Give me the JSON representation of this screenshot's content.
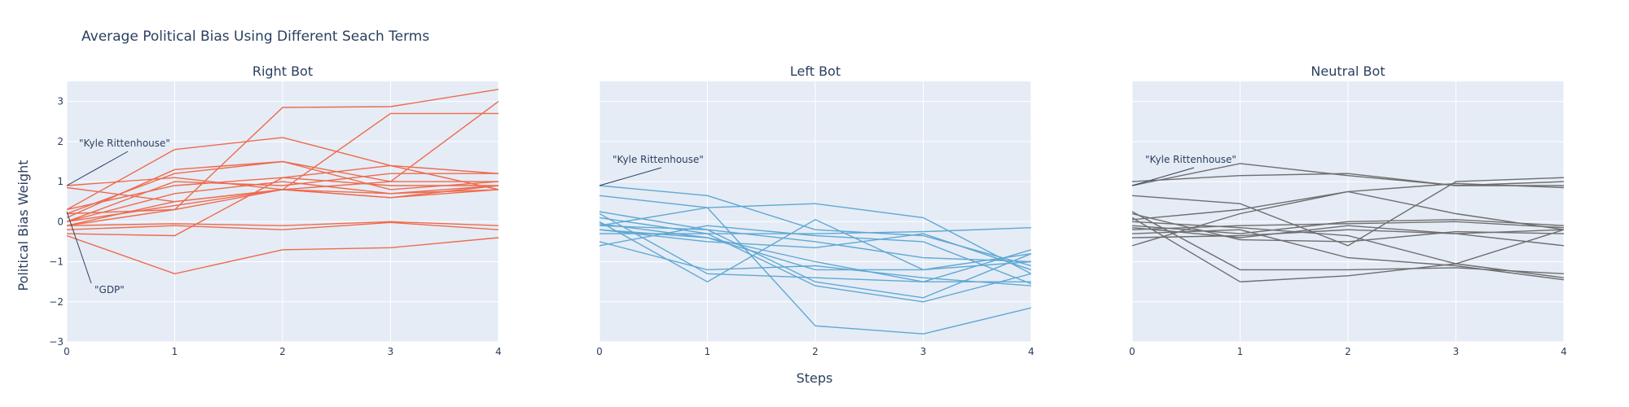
{
  "title": "Average Political Bias Using Different Seach Terms",
  "xlabel": "Steps",
  "ylabel": "Political Bias Weight",
  "colors": {
    "plot_bg": "#e5ecf6",
    "grid": "#ffffff",
    "right": "#ef6a4c",
    "left": "#5fa8d3",
    "neutral": "#6e6e6e"
  },
  "chart_data": [
    {
      "type": "line",
      "title": "Right Bot",
      "xlim": [
        0,
        4
      ],
      "ylim": [
        -3,
        3.5
      ],
      "x_ticks": [
        0,
        1,
        2,
        3,
        4
      ],
      "y_ticks": [
        -3,
        -2,
        -1,
        0,
        1,
        2,
        3
      ],
      "grid": true,
      "color": "#ef6a4c",
      "x": [
        0,
        1,
        2,
        3,
        4
      ],
      "series": [
        {
          "values": [
            0.9,
            1.1,
            0.8,
            0.7,
            0.9
          ]
        },
        {
          "values": [
            0.3,
            1.8,
            2.1,
            1.4,
            0.8
          ]
        },
        {
          "values": [
            0.2,
            1.2,
            1.5,
            0.8,
            1.0
          ]
        },
        {
          "values": [
            0.1,
            1.3,
            1.5,
            1.0,
            1.0
          ]
        },
        {
          "values": [
            -0.1,
            0.3,
            2.85,
            2.87,
            3.3
          ]
        },
        {
          "values": [
            0.2,
            0.3,
            0.8,
            2.7,
            2.7
          ]
        },
        {
          "values": [
            0.0,
            0.4,
            0.8,
            1.0,
            3.0
          ]
        },
        {
          "values": [
            -0.1,
            0.5,
            0.8,
            0.6,
            0.9
          ]
        },
        {
          "values": [
            0.0,
            0.7,
            1.0,
            0.7,
            0.8
          ]
        },
        {
          "values": [
            0.3,
            0.9,
            1.1,
            0.9,
            0.9
          ]
        },
        {
          "values": [
            0.85,
            0.5,
            0.8,
            0.6,
            0.8
          ]
        },
        {
          "values": [
            -0.1,
            -0.05,
            -0.1,
            0.0,
            -0.1
          ]
        },
        {
          "values": [
            -0.2,
            -0.1,
            -0.2,
            -0.02,
            -0.2
          ]
        },
        {
          "values": [
            -0.3,
            -0.35,
            1.1,
            1.4,
            1.2
          ]
        },
        {
          "values": [
            -0.35,
            -1.3,
            -0.7,
            -0.65,
            -0.4
          ]
        },
        {
          "values": [
            0.0,
            1.0,
            0.9,
            1.2,
            1.2
          ]
        }
      ],
      "annotations": [
        {
          "text": "\"Kyle Rittenhouse\"",
          "x": 0,
          "y": 0.9
        },
        {
          "text": "\"GDP\"",
          "x": 0,
          "y": 0.25
        }
      ]
    },
    {
      "type": "line",
      "title": "Left Bot",
      "xlim": [
        0,
        4
      ],
      "ylim": [
        -3,
        3.5
      ],
      "x_ticks": [
        0,
        1,
        2,
        3,
        4
      ],
      "grid": true,
      "color": "#5fa8d3",
      "x": [
        0,
        1,
        2,
        3,
        4
      ],
      "series": [
        {
          "values": [
            0.9,
            0.65,
            -0.2,
            -0.35,
            -1.1
          ]
        },
        {
          "values": [
            0.65,
            0.35,
            0.45,
            0.1,
            -1.3
          ]
        },
        {
          "values": [
            0.25,
            -0.2,
            -1.5,
            -1.9,
            -0.8
          ]
        },
        {
          "values": [
            0.1,
            -0.3,
            -1.6,
            -2.0,
            -1.3
          ]
        },
        {
          "values": [
            0.0,
            -1.5,
            0.05,
            -1.2,
            -1.0
          ]
        },
        {
          "values": [
            -0.1,
            0.35,
            -2.6,
            -2.8,
            -2.15
          ]
        },
        {
          "values": [
            -0.2,
            -0.4,
            -1.2,
            -1.2,
            -0.8
          ]
        },
        {
          "values": [
            -0.1,
            -0.2,
            -0.5,
            -0.9,
            -1.0
          ]
        },
        {
          "values": [
            -0.3,
            -0.3,
            -0.3,
            -0.25,
            -0.15
          ]
        },
        {
          "values": [
            -0.05,
            -0.4,
            -1.0,
            -1.5,
            -1.5
          ]
        },
        {
          "values": [
            -0.5,
            -1.2,
            -1.1,
            -1.4,
            -1.6
          ]
        },
        {
          "values": [
            0.2,
            -1.3,
            -1.4,
            -1.5,
            -0.7
          ]
        },
        {
          "values": [
            -0.2,
            -0.5,
            -0.65,
            -0.3,
            -1.2
          ]
        },
        {
          "values": [
            -0.6,
            -0.1,
            -0.35,
            -0.5,
            -1.55
          ]
        }
      ],
      "annotations": [
        {
          "text": "\"Kyle Rittenhouse\"",
          "x": 0,
          "y": 0.9
        }
      ]
    },
    {
      "type": "line",
      "title": "Neutral Bot",
      "xlim": [
        0,
        4
      ],
      "ylim": [
        -3,
        3.5
      ],
      "x_ticks": [
        0,
        1,
        2,
        3,
        4
      ],
      "grid": true,
      "color": "#6e6e6e",
      "x": [
        0,
        1,
        2,
        3,
        4
      ],
      "series": [
        {
          "values": [
            0.9,
            1.45,
            1.15,
            0.9,
            0.9
          ]
        },
        {
          "values": [
            1.0,
            1.15,
            1.2,
            0.9,
            1.0
          ]
        },
        {
          "values": [
            0.65,
            0.45,
            -0.6,
            1.0,
            1.1
          ]
        },
        {
          "values": [
            0.25,
            -1.2,
            -1.2,
            -1.15,
            -1.3
          ]
        },
        {
          "values": [
            0.05,
            0.3,
            0.75,
            0.2,
            -0.2
          ]
        },
        {
          "values": [
            0.1,
            -1.5,
            -1.35,
            -1.05,
            -0.2
          ]
        },
        {
          "values": [
            0.0,
            -0.15,
            -0.35,
            -1.05,
            -1.4
          ]
        },
        {
          "values": [
            -0.1,
            -0.3,
            0.0,
            0.05,
            -0.1
          ]
        },
        {
          "values": [
            -0.2,
            -0.1,
            -0.05,
            0.0,
            -0.15
          ]
        },
        {
          "values": [
            -0.15,
            -0.4,
            -0.1,
            -0.3,
            -0.2
          ]
        },
        {
          "values": [
            -0.3,
            -0.2,
            -0.9,
            -1.1,
            -1.45
          ]
        },
        {
          "values": [
            -0.4,
            -0.35,
            -0.2,
            -0.3,
            -0.6
          ]
        },
        {
          "values": [
            -0.6,
            0.2,
            0.75,
            0.95,
            0.85
          ]
        },
        {
          "values": [
            0.2,
            -0.45,
            -0.5,
            -0.25,
            -0.3
          ]
        }
      ],
      "annotations": [
        {
          "text": "\"Kyle Rittenhouse\"",
          "x": 0,
          "y": 0.9
        }
      ]
    }
  ]
}
